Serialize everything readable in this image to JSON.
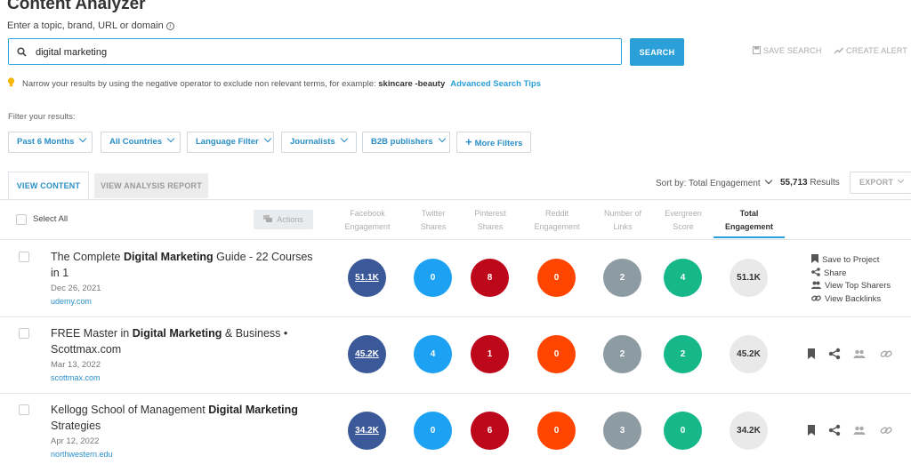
{
  "header": {
    "title": "Content Analyzer",
    "subtitle": "Enter a topic, brand, URL or domain"
  },
  "search": {
    "value": "digital marketing",
    "button_label": "SEARCH",
    "save_label": "SAVE SEARCH",
    "alert_label": "CREATE ALERT"
  },
  "tip": {
    "text": "Narrow your results by using the negative operator to exclude non relevant terms, for example:",
    "example": "skincare -beauty",
    "link": "Advanced Search Tips"
  },
  "filters": {
    "label": "Filter your results:",
    "items": [
      "Past 6 Months",
      "All Countries",
      "Language Filter",
      "Journalists",
      "B2B publishers"
    ],
    "more": "More Filters"
  },
  "tabs": {
    "view_content": "VIEW CONTENT",
    "view_analysis": "VIEW ANALYSIS REPORT"
  },
  "toolbar": {
    "sort_label": "Sort by: Total Engagement",
    "results_count": "55,713",
    "results_label": "Results",
    "export_label": "EXPORT",
    "select_all": "Select All",
    "actions_label": "Actions"
  },
  "columns": [
    {
      "line1": "Facebook",
      "line2": "Engagement"
    },
    {
      "line1": "Twitter",
      "line2": "Shares"
    },
    {
      "line1": "Pinterest",
      "line2": "Shares"
    },
    {
      "line1": "Reddit",
      "line2": "Engagement"
    },
    {
      "line1": "Number of",
      "line2": "Links"
    },
    {
      "line1": "Evergreen",
      "line2": "Score"
    },
    {
      "line1": "Total",
      "line2": "Engagement"
    }
  ],
  "row_actions": {
    "save": "Save to Project",
    "share": "Share",
    "sharers": "View Top Sharers",
    "backlinks": "View Backlinks"
  },
  "colors": {
    "facebook": "#3b5998",
    "twitter": "#1da1f2",
    "pinterest": "#bd081c",
    "reddit": "#ff4500",
    "links": "#8d9ba3",
    "evergreen": "#16b88a",
    "total": "#e9e9e9",
    "accent": "#2a9fd8"
  },
  "rows": [
    {
      "title_pre": "The Complete ",
      "title_bold": "Digital Marketing",
      "title_post": " Guide - 22 Courses in 1",
      "date": "Dec 26, 2021",
      "domain": "udemy.com",
      "metrics": [
        "51.1K",
        "0",
        "8",
        "0",
        "2",
        "4",
        "51.1K"
      ]
    },
    {
      "title_pre": "FREE Master in ",
      "title_bold": "Digital Marketing",
      "title_post": " & Business • Scottmax.com",
      "date": "Mar 13, 2022",
      "domain": "scottmax.com",
      "metrics": [
        "45.2K",
        "4",
        "1",
        "0",
        "2",
        "2",
        "45.2K"
      ]
    },
    {
      "title_pre": "Kellogg School of Management ",
      "title_bold": "Digital Marketing",
      "title_post": " Strategies",
      "date": "Apr 12, 2022",
      "domain": "northwestern.edu",
      "metrics": [
        "34.2K",
        "0",
        "6",
        "0",
        "3",
        "0",
        "34.2K"
      ]
    }
  ]
}
